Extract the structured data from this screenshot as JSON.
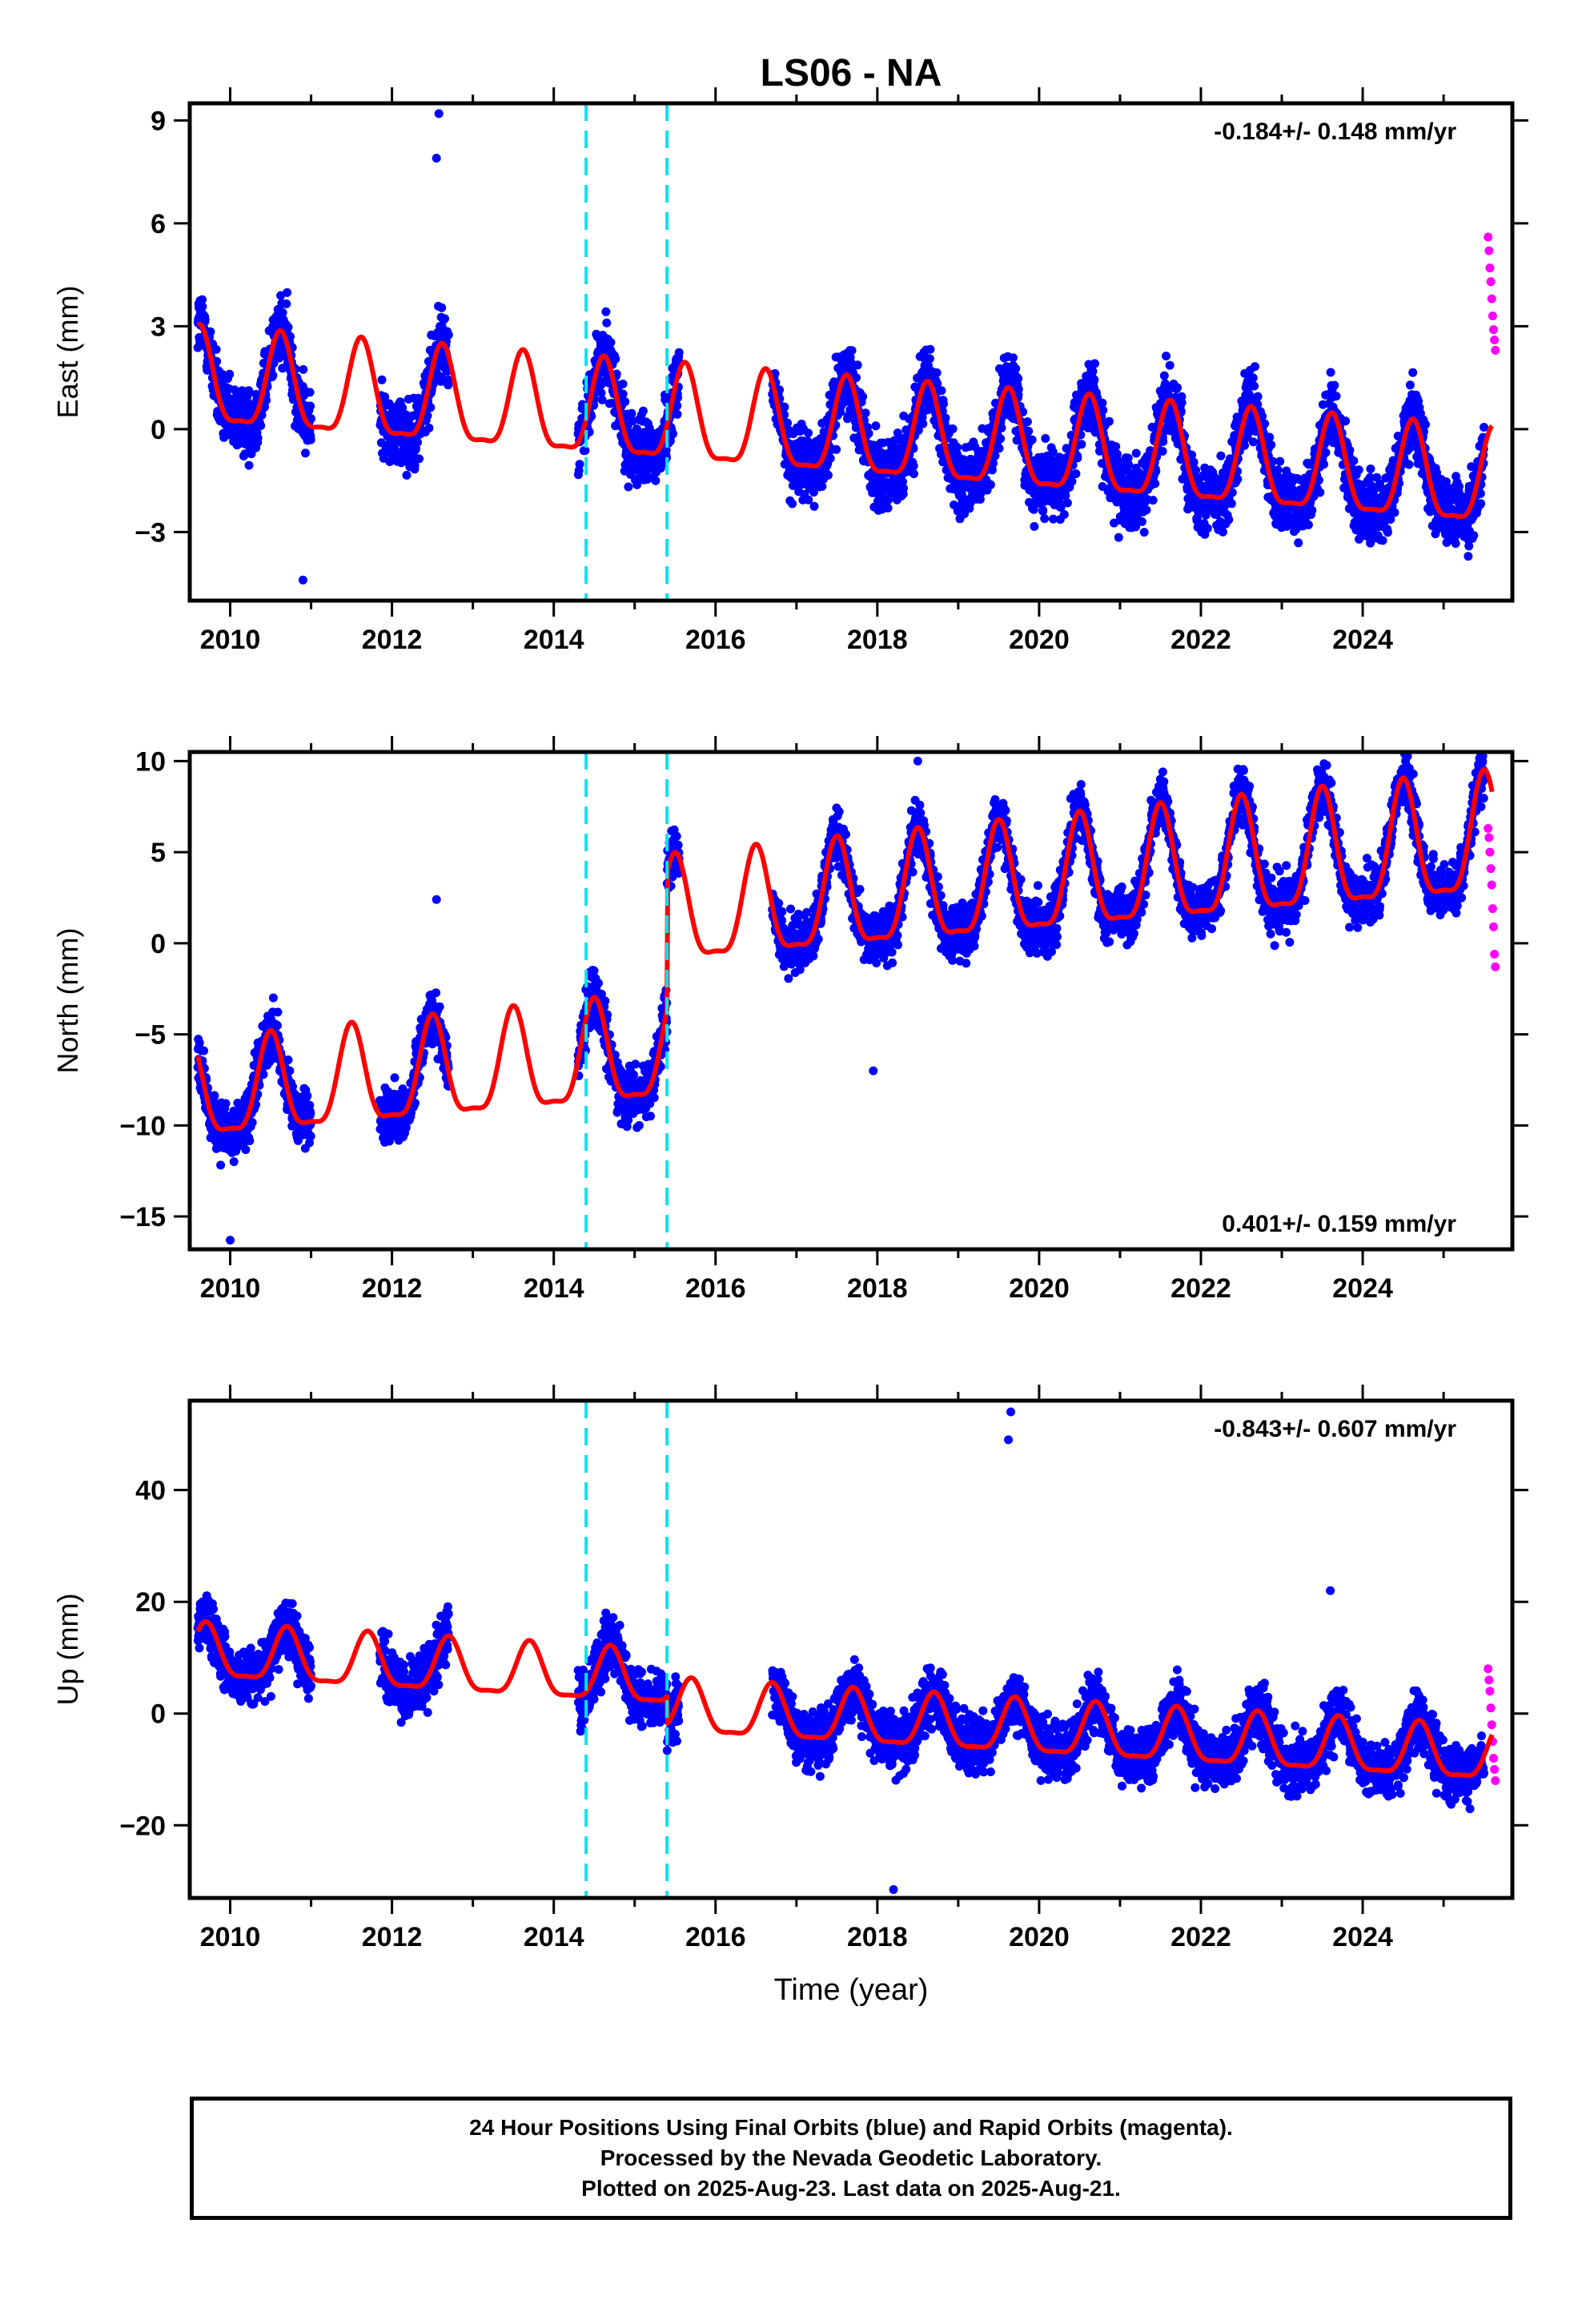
{
  "chart_data": [
    {
      "type": "scatter",
      "panel": "east",
      "title": "LS06 - NA",
      "ylabel": "East (mm)",
      "xlabel": "",
      "xlim": [
        2009.5,
        2025.85
      ],
      "ylim": [
        -5.0,
        9.5
      ],
      "yticks": [
        -3,
        0,
        3,
        6,
        9
      ],
      "xticks": [
        2010,
        2012,
        2014,
        2016,
        2018,
        2020,
        2022,
        2024
      ],
      "rate_label": "-0.184+/- 0.148 mm/yr",
      "rate_label_position": "top-right",
      "offset_lines_years": [
        2014.4,
        2015.4
      ],
      "model": {
        "mean0": 1.3,
        "trend": -0.184,
        "amplitude_start": 1.6,
        "amplitude_end": 1.6,
        "peak_phase": 0.62,
        "offsets": [
          0,
          0
        ]
      },
      "final_orbits": {
        "start": 2009.6,
        "end": 2025.5,
        "scatter": 0.9,
        "gaps": [
          [
            2011.0,
            2011.85
          ],
          [
            2012.7,
            2014.3
          ],
          [
            2015.55,
            2016.7
          ]
        ],
        "outliers": [
          [
            2012.58,
            9.2
          ],
          [
            2012.55,
            7.9
          ],
          [
            2010.9,
            -4.4
          ]
        ]
      },
      "rapid_orbits": {
        "start": 2025.55,
        "end": 2025.64,
        "values": [
          5.6,
          5.2,
          4.7,
          4.3,
          3.8,
          3.3,
          2.9,
          2.6,
          2.3
        ]
      },
      "colors": {
        "final": "#0000ff",
        "rapid": "#ff00ff",
        "model": "#ff0000",
        "offset": "#00e5ee"
      }
    },
    {
      "type": "scatter",
      "panel": "north",
      "ylabel": "North (mm)",
      "xlabel": "",
      "xlim": [
        2009.5,
        2025.85
      ],
      "ylim": [
        -16.8,
        10.5
      ],
      "yticks": [
        -15,
        -10,
        -5,
        0,
        5,
        10
      ],
      "xticks": [
        2010,
        2012,
        2014,
        2016,
        2018,
        2020,
        2022,
        2024
      ],
      "rate_label": "0.401+/- 0.159 mm/yr",
      "rate_label_position": "bottom-right",
      "offset_lines_years": [
        2014.4,
        2015.4
      ],
      "model": {
        "mean0": -8.5,
        "trend": 0.401,
        "amplitude_start": 3.0,
        "amplitude_end": 3.8,
        "peak_phase": 0.5,
        "offsets": [
          0,
          7.5
        ]
      },
      "final_orbits": {
        "start": 2009.6,
        "end": 2025.5,
        "scatter": 1.3,
        "gaps": [
          [
            2011.0,
            2011.85
          ],
          [
            2012.7,
            2014.3
          ],
          [
            2015.55,
            2016.7
          ]
        ],
        "outliers": [
          [
            2010.0,
            -16.3
          ],
          [
            2012.55,
            2.4
          ],
          [
            2018.5,
            10.0
          ],
          [
            2017.95,
            -7.0
          ]
        ]
      },
      "rapid_orbits": {
        "start": 2025.55,
        "end": 2025.64,
        "values": [
          6.3,
          5.8,
          5.0,
          4.1,
          3.2,
          1.9,
          0.9,
          -0.6,
          -1.3
        ]
      },
      "colors": {
        "final": "#0000ff",
        "rapid": "#ff00ff",
        "model": "#ff0000",
        "offset": "#00e5ee"
      }
    },
    {
      "type": "scatter",
      "panel": "up",
      "ylabel": "Up (mm)",
      "xlabel": "Time (year)",
      "xlim": [
        2009.5,
        2025.85
      ],
      "ylim": [
        -33.0,
        56.0
      ],
      "yticks": [
        -20,
        0,
        20,
        40
      ],
      "xticks": [
        2010,
        2012,
        2014,
        2016,
        2018,
        2020,
        2022,
        2024
      ],
      "rate_label": "-0.843+/- 0.607 mm/yr",
      "rate_label_position": "top-right",
      "offset_lines_years": [
        2014.4,
        2015.4
      ],
      "model": {
        "mean0": 10.5,
        "trend": -0.843,
        "amplitude_start": 5.5,
        "amplitude_end": 5.5,
        "peak_phase": 0.7,
        "offsets": [
          0,
          -5
        ]
      },
      "final_orbits": {
        "start": 2009.6,
        "end": 2025.5,
        "scatter": 4.5,
        "gaps": [
          [
            2011.0,
            2011.85
          ],
          [
            2012.7,
            2014.3
          ],
          [
            2015.55,
            2016.7
          ]
        ],
        "outliers": [
          [
            2019.65,
            54.0
          ],
          [
            2019.62,
            49.0
          ],
          [
            2023.6,
            22.0
          ],
          [
            2018.2,
            -31.5
          ]
        ]
      },
      "rapid_orbits": {
        "start": 2025.55,
        "end": 2025.64,
        "values": [
          8.0,
          6.0,
          4.0,
          1.0,
          -2.0,
          -5.0,
          -8.0,
          -10.0,
          -12.0
        ]
      },
      "colors": {
        "final": "#0000ff",
        "rapid": "#ff00ff",
        "model": "#ff0000",
        "offset": "#00e5ee"
      }
    }
  ],
  "caption": {
    "line1": "24 Hour Positions Using Final Orbits (blue) and Rapid Orbits (magenta).",
    "line2": "Processed by the Nevada Geodetic Laboratory.",
    "line3": "Plotted on 2025-Aug-23. Last data on 2025-Aug-21."
  }
}
